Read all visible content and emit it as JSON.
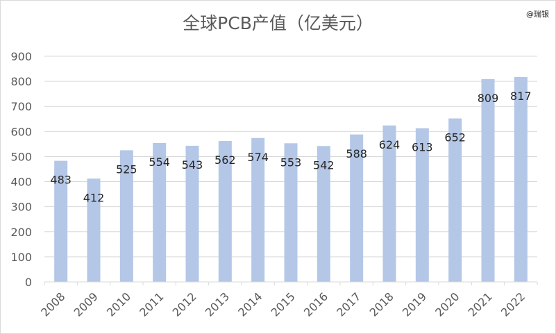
{
  "title": "全球PCB产值（亿美元）",
  "watermark": "@瑞银",
  "colors": {
    "bar": "#b4c7e7",
    "grid": "#d9d9d9",
    "axis_text": "#595959",
    "label_text": "#262626"
  },
  "chart_data": {
    "type": "bar",
    "title": "全球PCB产值（亿美元）",
    "xlabel": "",
    "ylabel": "",
    "categories": [
      "2008",
      "2009",
      "2010",
      "2011",
      "2012",
      "2013",
      "2014",
      "2015",
      "2016",
      "2017",
      "2018",
      "2019",
      "2020",
      "2021",
      "2022"
    ],
    "values": [
      483,
      412,
      525,
      554,
      543,
      562,
      574,
      553,
      542,
      588,
      624,
      613,
      652,
      809,
      817
    ],
    "ylim": [
      0,
      900
    ],
    "yticks": [
      0,
      100,
      200,
      300,
      400,
      500,
      600,
      700,
      800,
      900
    ],
    "grid": true,
    "legend": "none",
    "data_labels": true
  }
}
